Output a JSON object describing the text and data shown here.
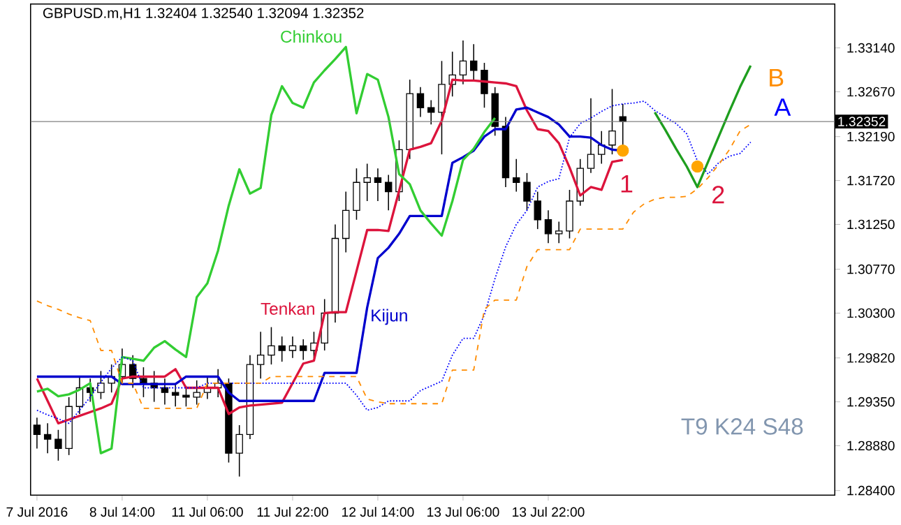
{
  "chart_data": {
    "type": "candlestick",
    "title": "GBPUSD.m,H1  1.32404 1.32540 1.32094 1.32352",
    "categories": [
      "7 Jul 2016",
      null,
      null,
      null,
      null,
      null,
      null,
      null,
      "8 Jul 14:00",
      null,
      null,
      null,
      null,
      null,
      null,
      null,
      "11 Jul 06:00",
      null,
      null,
      null,
      null,
      null,
      null,
      null,
      "11 Jul 22:00",
      null,
      null,
      null,
      null,
      null,
      null,
      null,
      "12 Jul 14:00",
      null,
      null,
      null,
      null,
      null,
      null,
      null,
      "13 Jul 06:00",
      null,
      null,
      null,
      null,
      null,
      null,
      null,
      "13 Jul 22:00",
      null,
      null,
      null,
      null,
      null,
      null,
      null,
      null,
      null,
      null,
      null,
      null,
      null,
      null,
      null,
      null,
      null,
      null,
      null
    ],
    "ohlc": [
      [
        1.291,
        1.2918,
        1.2885,
        1.29
      ],
      [
        1.29,
        1.2912,
        1.288,
        1.2895
      ],
      [
        1.2895,
        1.2905,
        1.2872,
        1.2885
      ],
      [
        1.2885,
        1.294,
        1.2878,
        1.293
      ],
      [
        1.293,
        1.2962,
        1.2922,
        1.295
      ],
      [
        1.295,
        1.296,
        1.2935,
        1.2945
      ],
      [
        1.2945,
        1.2968,
        1.2938,
        1.2955
      ],
      [
        1.2955,
        1.2975,
        1.2945,
        1.2962
      ],
      [
        1.2962,
        1.2992,
        1.2955,
        1.2975
      ],
      [
        1.2975,
        1.2985,
        1.295,
        1.296
      ],
      [
        1.296,
        1.2972,
        1.294,
        1.2955
      ],
      [
        1.2955,
        1.2968,
        1.2935,
        1.295
      ],
      [
        1.295,
        1.296,
        1.2932,
        1.2945
      ],
      [
        1.2945,
        1.2955,
        1.293,
        1.2942
      ],
      [
        1.2942,
        1.2952,
        1.293,
        1.294
      ],
      [
        1.294,
        1.2958,
        1.2932,
        1.2945
      ],
      [
        1.2945,
        1.2962,
        1.2938,
        1.295
      ],
      [
        1.295,
        1.297,
        1.294,
        1.2955
      ],
      [
        1.2955,
        1.296,
        1.287,
        1.288
      ],
      [
        1.288,
        1.291,
        1.2855,
        1.29
      ],
      [
        1.29,
        1.2985,
        1.2895,
        1.2975
      ],
      [
        1.2975,
        1.301,
        1.296,
        1.2985
      ],
      [
        1.2985,
        1.3015,
        1.2975,
        1.2995
      ],
      [
        1.2995,
        1.3005,
        1.2978,
        1.299
      ],
      [
        1.299,
        1.3005,
        1.2982,
        1.2995
      ],
      [
        1.2995,
        1.3002,
        1.298,
        1.299
      ],
      [
        1.299,
        1.301,
        1.2982,
        1.2998
      ],
      [
        1.2998,
        1.3045,
        1.299,
        1.303
      ],
      [
        1.303,
        1.3125,
        1.302,
        1.311
      ],
      [
        1.311,
        1.316,
        1.3095,
        1.314
      ],
      [
        1.314,
        1.3185,
        1.313,
        1.317
      ],
      [
        1.317,
        1.319,
        1.315,
        1.3175
      ],
      [
        1.3175,
        1.3185,
        1.315,
        1.317
      ],
      [
        1.317,
        1.3178,
        1.314,
        1.316
      ],
      [
        1.316,
        1.3215,
        1.315,
        1.3205
      ],
      [
        1.3205,
        1.328,
        1.3195,
        1.3265
      ],
      [
        1.3265,
        1.3272,
        1.324,
        1.325
      ],
      [
        1.325,
        1.3258,
        1.3232,
        1.3245
      ],
      [
        1.3245,
        1.33,
        1.32,
        1.3275
      ],
      [
        1.3275,
        1.331,
        1.3262,
        1.3285
      ],
      [
        1.3285,
        1.3322,
        1.3275,
        1.33
      ],
      [
        1.33,
        1.3318,
        1.3278,
        1.329
      ],
      [
        1.329,
        1.3298,
        1.325,
        1.3265
      ],
      [
        1.3265,
        1.3272,
        1.322,
        1.323
      ],
      [
        1.323,
        1.324,
        1.3165,
        1.3175
      ],
      [
        1.3175,
        1.3195,
        1.316,
        1.317
      ],
      [
        1.317,
        1.318,
        1.314,
        1.315
      ],
      [
        1.315,
        1.316,
        1.312,
        1.313
      ],
      [
        1.313,
        1.314,
        1.3105,
        1.3115
      ],
      [
        1.3115,
        1.3128,
        1.3105,
        1.3118
      ],
      [
        1.3118,
        1.3162,
        1.311,
        1.315
      ],
      [
        1.315,
        1.3195,
        1.3145,
        1.3185
      ],
      [
        1.3185,
        1.326,
        1.318,
        1.32
      ],
      [
        1.32,
        1.3225,
        1.319,
        1.321
      ],
      [
        1.321,
        1.327,
        1.32,
        1.3225
      ],
      [
        1.32404,
        1.3254,
        1.32094,
        1.32352
      ],
      null,
      null,
      null,
      null,
      null,
      null,
      null,
      null,
      null,
      null,
      null,
      null
    ],
    "series": [
      {
        "name": "Tenkan",
        "type": "line",
        "color": "#dc143c",
        "values": [
          1.296,
          1.2936,
          1.2912,
          1.2916,
          1.292,
          1.2924,
          1.2928,
          1.2933,
          1.296,
          1.2962,
          1.2962,
          1.2962,
          1.2962,
          1.297,
          1.295,
          1.295,
          1.295,
          1.295,
          1.2922,
          1.2929,
          1.2931,
          1.2932,
          1.2933,
          1.2934,
          1.2955,
          1.2976,
          1.2979,
          1.303,
          1.3031,
          1.3031,
          1.3075,
          1.3119,
          1.3119,
          1.3118,
          1.3161,
          1.3205,
          1.3208,
          1.3212,
          1.3236,
          1.328,
          1.3279,
          1.3279,
          1.3278,
          1.3277,
          1.3276,
          1.3273,
          1.3247,
          1.3227,
          1.3225,
          1.3212,
          1.3186,
          1.3156,
          1.3165,
          1.3162,
          1.3192,
          1.3194,
          null,
          null,
          null,
          null,
          null,
          null,
          null,
          null,
          null,
          null,
          null,
          null
        ]
      },
      {
        "name": "Kijun",
        "type": "line",
        "color": "#0000cd",
        "values": [
          1.2962,
          1.2962,
          1.2962,
          1.2962,
          1.2962,
          1.2962,
          1.2962,
          1.2962,
          1.2954,
          1.2954,
          1.2954,
          1.2954,
          1.2954,
          1.2954,
          1.2962,
          1.2962,
          1.2962,
          1.2962,
          1.2945,
          1.2936,
          1.2936,
          1.2936,
          1.2936,
          1.2936,
          1.2936,
          1.2936,
          1.2936,
          1.2966,
          1.2966,
          1.2966,
          1.2966,
          1.3036,
          1.3089,
          1.31,
          1.3115,
          1.3134,
          1.3134,
          1.3134,
          1.3134,
          1.3191,
          1.3197,
          1.3204,
          1.3219,
          1.3227,
          1.3227,
          1.3248,
          1.325,
          1.3245,
          1.324,
          1.3232,
          1.3219,
          1.3219,
          1.3218,
          1.321,
          1.3205,
          1.3204,
          null,
          null,
          null,
          null,
          null,
          null,
          null,
          null,
          null,
          null,
          null,
          null
        ]
      },
      {
        "name": "Chinkou",
        "type": "line",
        "color": "#32cd32",
        "values": [
          1.2946,
          1.2949,
          1.2941,
          1.2943,
          1.2948,
          1.2955,
          1.288,
          1.2885,
          1.2983,
          1.2981,
          1.2979,
          1.2993,
          1.3,
          1.2991,
          1.2983,
          1.3047,
          1.3062,
          1.3097,
          1.3145,
          1.3184,
          1.3158,
          1.3164,
          1.3242,
          1.3273,
          1.3255,
          1.325,
          1.3277,
          1.329,
          1.3302,
          1.3315,
          1.3244,
          1.3286,
          1.328,
          1.324,
          1.3179,
          1.3168,
          1.314,
          1.3126,
          1.3113,
          1.315,
          1.3194,
          1.3206,
          1.3224,
          1.3239,
          null,
          null,
          null,
          null,
          null,
          null,
          null,
          null,
          null,
          null,
          null,
          null,
          null,
          null,
          null,
          null,
          null,
          null,
          null,
          null,
          null,
          null,
          null,
          null
        ]
      },
      {
        "name": "A",
        "type": "line",
        "color": "#0000ff",
        "line_style": "dotted",
        "values": [
          1.2926,
          1.2921,
          1.2917,
          1.2912,
          1.2926,
          1.294,
          1.2956,
          1.2971,
          1.2983,
          1.2979,
          1.295,
          1.295,
          1.295,
          1.295,
          1.295,
          1.295,
          1.2955,
          1.2955,
          1.2955,
          1.2955,
          1.2955,
          1.2955,
          1.2955,
          1.2955,
          1.2955,
          1.2955,
          1.2955,
          1.2955,
          1.2955,
          1.2955,
          1.2942,
          1.2926,
          1.2929,
          1.2936,
          1.2936,
          1.2936,
          1.2947,
          1.2952,
          1.2957,
          1.2985,
          1.3003,
          1.3003,
          1.3028,
          1.3067,
          1.3101,
          1.3125,
          1.314,
          1.3165,
          1.3171,
          1.3174,
          1.3218,
          1.3233,
          1.3239,
          1.3246,
          1.3252,
          1.3254,
          1.3255,
          1.3257,
          1.3247,
          1.324,
          1.3233,
          1.3222,
          1.3193,
          1.3179,
          1.3191,
          1.3198,
          1.3201,
          1.3213
        ]
      },
      {
        "name": "B",
        "type": "line",
        "color": "#ff8c00",
        "line_style": "dashed",
        "values": [
          1.3043,
          1.3038,
          1.3034,
          1.3029,
          1.3025,
          1.3022,
          1.299,
          1.299,
          1.2955,
          1.2955,
          1.2928,
          1.2928,
          1.2928,
          1.2928,
          1.2928,
          1.2928,
          1.2955,
          1.2955,
          1.2955,
          1.2955,
          1.2955,
          1.2955,
          1.2962,
          1.2962,
          1.2962,
          1.2962,
          1.2962,
          1.2962,
          1.2962,
          1.2962,
          1.2962,
          1.2938,
          1.2935,
          1.2933,
          1.2933,
          1.2933,
          1.2933,
          1.2933,
          1.2933,
          1.2969,
          1.2969,
          1.2969,
          1.3034,
          1.3044,
          1.3044,
          1.3044,
          1.308,
          1.3098,
          1.3098,
          1.3098,
          1.3098,
          1.312,
          1.312,
          1.312,
          1.312,
          1.312,
          1.3138,
          1.3147,
          1.3152,
          1.3154,
          1.3154,
          1.3155,
          1.3163,
          1.3175,
          1.3189,
          1.3205,
          1.3225,
          1.3232
        ]
      },
      {
        "type": "line",
        "color": "#1e9e1e",
        "values": [
          null,
          null,
          null,
          null,
          null,
          null,
          null,
          null,
          null,
          null,
          null,
          null,
          null,
          null,
          null,
          null,
          null,
          null,
          null,
          null,
          null,
          null,
          null,
          null,
          null,
          null,
          null,
          null,
          null,
          null,
          null,
          null,
          null,
          null,
          null,
          null,
          null,
          null,
          null,
          null,
          null,
          null,
          null,
          null,
          null,
          null,
          null,
          null,
          null,
          null,
          null,
          null,
          null,
          null,
          null,
          null,
          null,
          null,
          1.3245,
          1.3226,
          1.3206,
          1.3187,
          1.3165,
          1.3192,
          1.3219,
          1.3246,
          1.3272,
          1.3295
        ]
      },
      {
        "type": "scatter",
        "color": "#ffa500",
        "marker": "circle",
        "values": [
          null,
          null,
          null,
          null,
          null,
          null,
          null,
          null,
          null,
          null,
          null,
          null,
          null,
          null,
          null,
          null,
          null,
          null,
          null,
          null,
          null,
          null,
          null,
          null,
          null,
          null,
          null,
          null,
          null,
          null,
          null,
          null,
          null,
          null,
          null,
          null,
          null,
          null,
          null,
          null,
          null,
          null,
          null,
          null,
          null,
          null,
          null,
          null,
          null,
          null,
          null,
          null,
          null,
          null,
          null,
          1.3204,
          null,
          null,
          null,
          null,
          null,
          null,
          1.3187,
          null,
          null,
          null,
          null,
          null
        ]
      }
    ],
    "ylim": [
      1.2835,
      1.3361
    ],
    "yticks": [
      {
        "value": 1.284,
        "label": "1.28400"
      },
      {
        "value": 1.2888,
        "label": "1.28880"
      },
      {
        "value": 1.2935,
        "label": "1.29350"
      },
      {
        "value": 1.2982,
        "label": "1.29820"
      },
      {
        "value": 1.303,
        "label": "1.30300"
      },
      {
        "value": 1.3077,
        "label": "1.30770"
      },
      {
        "value": 1.3125,
        "label": "1.31250"
      },
      {
        "value": 1.3172,
        "label": "1.31720"
      },
      {
        "value": 1.3219,
        "label": "1.32190"
      },
      {
        "value": 1.3267,
        "label": "1.32670"
      },
      {
        "value": 1.3314,
        "label": "1.33140"
      }
    ],
    "ref_lines": [
      {
        "axis": "y",
        "value": 1.32352,
        "label": "1.32352",
        "color": "#808080"
      }
    ],
    "annotations": [
      "1",
      "2",
      "T9 K24 S48"
    ]
  }
}
